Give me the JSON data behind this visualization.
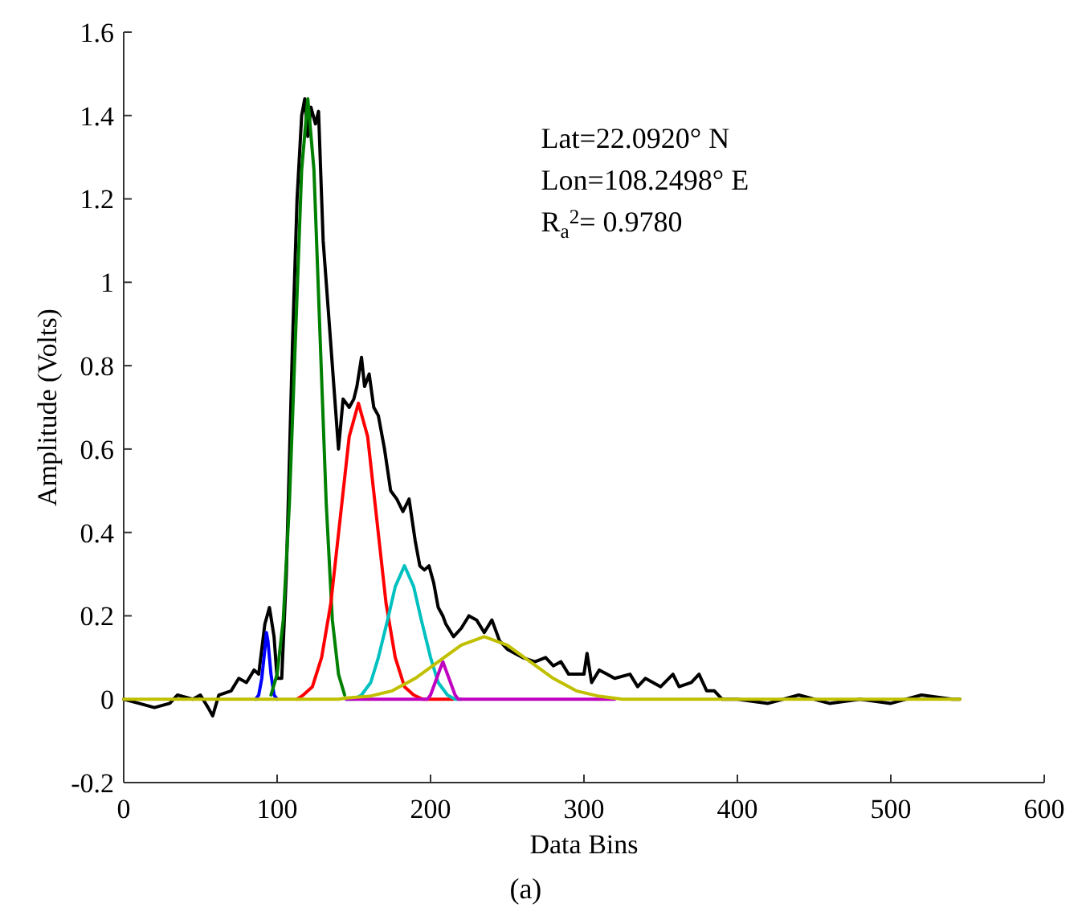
{
  "chart_data": {
    "type": "line",
    "xlabel": "Data Bins",
    "ylabel": "Amplitude (Volts)",
    "xlim": [
      0,
      600
    ],
    "xticks": [
      0,
      100,
      200,
      300,
      400,
      500,
      600
    ],
    "ylim": [
      -0.2,
      1.6
    ],
    "yticks": [
      {
        "value": -0.2,
        "label": "-0.2"
      },
      0,
      0.2,
      0.4,
      0.6,
      0.8,
      1,
      1.2,
      1.4,
      1.6
    ],
    "grid": false,
    "marker": "none",
    "line_style": "solid",
    "annotations": [
      "Lat=22.0920° N",
      "Lon=108.2498° E",
      "R$_{a}$$^{2}$= 0.9780",
      "(a)"
    ],
    "series": [
      {
        "color": "#000000",
        "x": [
          0,
          10,
          20,
          30,
          35,
          45,
          50,
          55,
          58,
          62,
          70,
          75,
          80,
          85,
          88,
          92,
          95,
          98,
          100,
          103,
          106,
          110,
          113,
          116,
          118,
          120,
          122,
          125,
          127,
          130,
          134,
          138,
          140,
          143,
          147,
          150,
          152,
          155,
          157,
          160,
          163,
          166,
          170,
          174,
          178,
          182,
          186,
          190,
          193,
          196,
          199,
          202,
          205,
          208,
          210,
          215,
          220,
          225,
          230,
          235,
          240,
          245,
          250,
          255,
          260,
          268,
          275,
          280,
          285,
          290,
          300,
          302,
          305,
          310,
          315,
          320,
          330,
          335,
          340,
          350,
          358,
          362,
          370,
          375,
          380,
          385,
          390,
          400,
          420,
          440,
          460,
          480,
          500,
          520,
          540,
          545
        ],
        "values": [
          0,
          -0.01,
          -0.02,
          -0.01,
          0.01,
          0,
          0.01,
          -0.02,
          -0.04,
          0.01,
          0.02,
          0.05,
          0.04,
          0.07,
          0.06,
          0.18,
          0.22,
          0.15,
          0.05,
          0.05,
          0.3,
          0.85,
          1.2,
          1.4,
          1.44,
          1.35,
          1.42,
          1.38,
          1.41,
          1.1,
          0.9,
          0.7,
          0.6,
          0.72,
          0.7,
          0.72,
          0.75,
          0.82,
          0.75,
          0.78,
          0.7,
          0.68,
          0.6,
          0.5,
          0.48,
          0.45,
          0.48,
          0.38,
          0.32,
          0.31,
          0.32,
          0.28,
          0.22,
          0.2,
          0.18,
          0.15,
          0.17,
          0.2,
          0.19,
          0.16,
          0.19,
          0.14,
          0.12,
          0.11,
          0.1,
          0.09,
          0.1,
          0.08,
          0.09,
          0.06,
          0.06,
          0.11,
          0.04,
          0.07,
          0.06,
          0.05,
          0.06,
          0.03,
          0.05,
          0.03,
          0.06,
          0.03,
          0.04,
          0.06,
          0.02,
          0.02,
          0,
          0,
          -0.01,
          0.01,
          -0.01,
          0,
          -0.01,
          0.01,
          0,
          0
        ]
      },
      {
        "color": "#0000ff",
        "x": [
          86,
          88,
          90,
          92,
          93,
          94,
          96,
          98,
          100
        ],
        "values": [
          0,
          0.01,
          0.05,
          0.12,
          0.16,
          0.14,
          0.06,
          0.01,
          0
        ]
      },
      {
        "color": "#008000",
        "x": [
          96,
          100,
          104,
          108,
          112,
          116,
          120,
          124,
          128,
          132,
          136,
          140,
          144
        ],
        "values": [
          0.01,
          0.06,
          0.19,
          0.47,
          0.87,
          1.27,
          1.44,
          1.27,
          0.87,
          0.47,
          0.19,
          0.06,
          0.01
        ]
      },
      {
        "color": "#ff0000",
        "x": [
          113,
          117,
          123,
          129,
          135,
          141,
          147,
          153,
          159,
          165,
          171,
          177,
          183,
          189,
          195,
          215
        ],
        "values": [
          0,
          0.01,
          0.03,
          0.1,
          0.23,
          0.43,
          0.63,
          0.71,
          0.63,
          0.43,
          0.23,
          0.1,
          0.03,
          0.01,
          0,
          0
        ]
      },
      {
        "color": "#00c0c0",
        "x": [
          145,
          150,
          155,
          161,
          166,
          172,
          177,
          183,
          189,
          194,
          200,
          205,
          211,
          216,
          220
        ],
        "values": [
          0,
          0,
          0.01,
          0.04,
          0.1,
          0.19,
          0.27,
          0.32,
          0.27,
          0.19,
          0.1,
          0.04,
          0.01,
          0,
          0
        ]
      },
      {
        "color": "#c000c0",
        "x": [
          145,
          198,
          200,
          204,
          208,
          212,
          216,
          218,
          320
        ],
        "values": [
          0,
          0,
          0.01,
          0.05,
          0.09,
          0.05,
          0.01,
          0,
          0
        ]
      },
      {
        "color": "#c0c000",
        "x": [
          0,
          140,
          145,
          160,
          175,
          190,
          205,
          220,
          235,
          250,
          265,
          280,
          295,
          310,
          325,
          545
        ],
        "values": [
          0,
          0,
          0.003,
          0.007,
          0.02,
          0.05,
          0.09,
          0.13,
          0.15,
          0.13,
          0.09,
          0.05,
          0.02,
          0.007,
          0,
          0
        ]
      }
    ]
  }
}
